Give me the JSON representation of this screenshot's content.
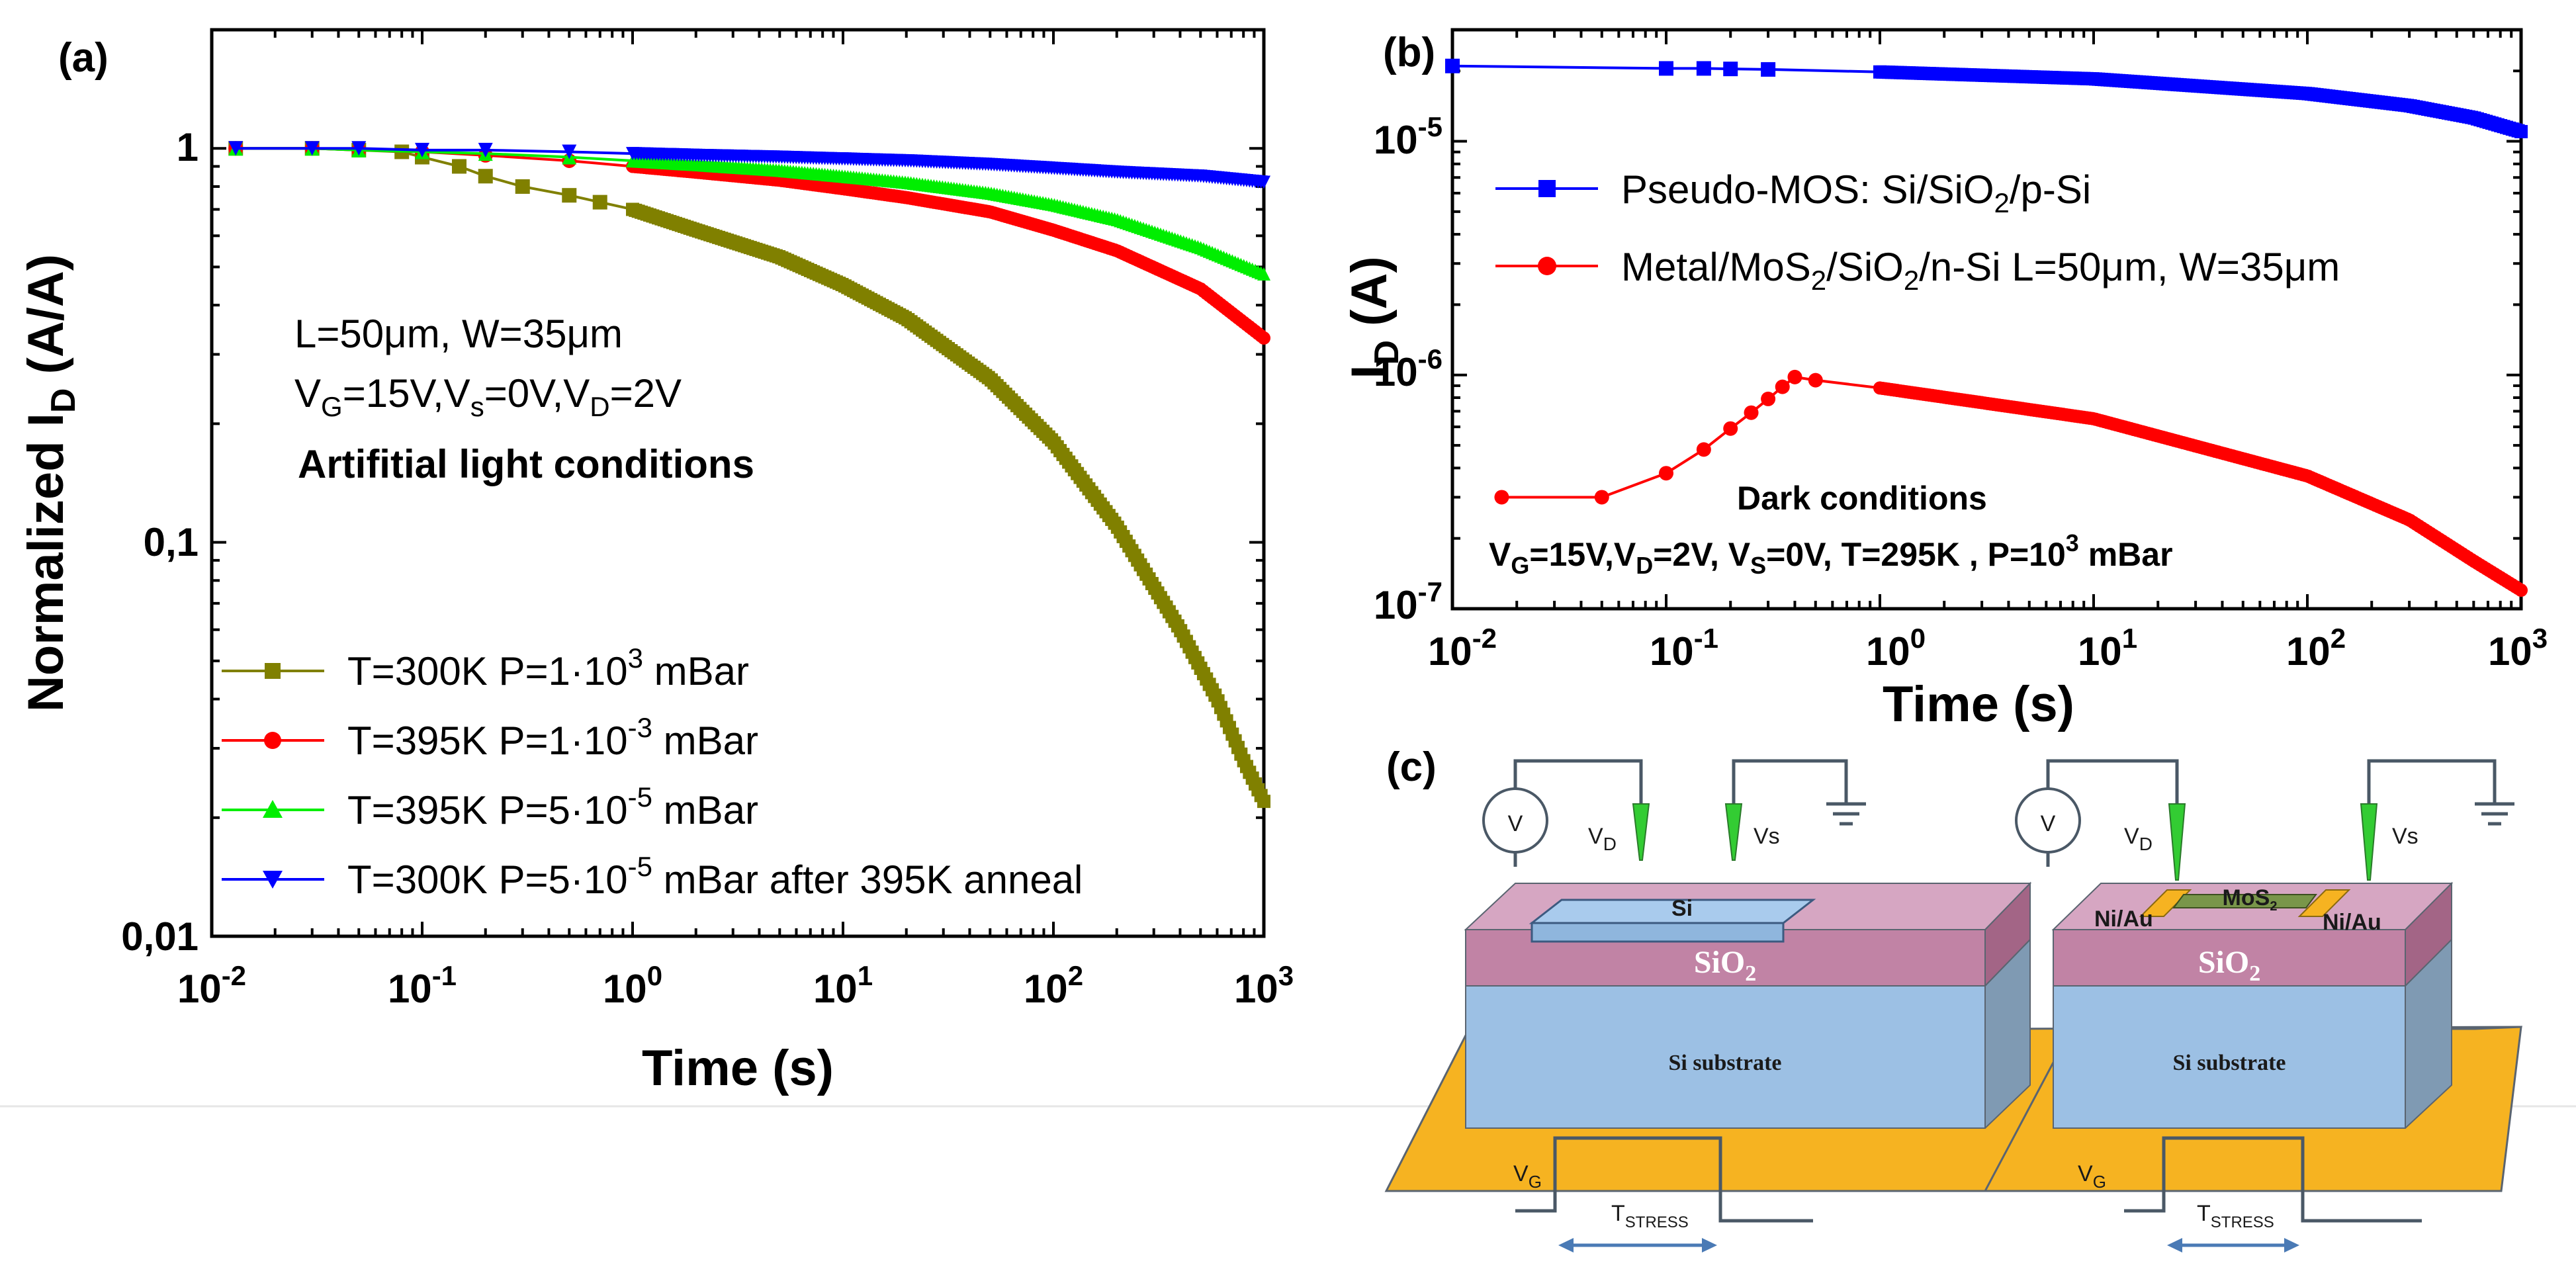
{
  "chart_data": [
    {
      "panel": "(a)",
      "type": "line",
      "xscale": "log",
      "yscale": "log",
      "xlim": [
        0.01,
        1000
      ],
      "ylim": [
        0.01,
        2
      ],
      "xlabel": "Time (s)",
      "ylabel": "Normalized I_D (A/A)",
      "xticks": [
        {
          "base": "10",
          "exp": "-2"
        },
        {
          "base": "10",
          "exp": "-1"
        },
        {
          "base": "10",
          "exp": "0"
        },
        {
          "base": "10",
          "exp": "1"
        },
        {
          "base": "10",
          "exp": "2"
        },
        {
          "base": "10",
          "exp": "3"
        }
      ],
      "yticks": [
        "1",
        "0,1",
        "0,01"
      ],
      "annotations": {
        "line1_prefix": "L=50",
        "line1_mu": "μ",
        "line1_mid": "m, W=35",
        "line1_mu2": "μ",
        "line1_suffix": "m",
        "line2_vg": "V",
        "line2_vg_sub": "G",
        "line2_a": "=15V,V",
        "line2_vs_sub": "s",
        "line2_b": "=0V,V",
        "line2_vd_sub": "D",
        "line2_c": "=2V",
        "line3": "Artifitial light conditions"
      },
      "legend_position": "bottom-left",
      "series": [
        {
          "name": "T=300K P=1·10^3 mBar",
          "legend_pre": "T=300K P=1·10",
          "legend_sup": "3",
          "legend_post": " mBar",
          "color": "#808000",
          "marker": "square",
          "x": [
            0.013,
            0.03,
            0.05,
            0.08,
            0.1,
            0.15,
            0.2,
            0.3,
            0.5,
            0.7,
            1,
            2,
            5,
            10,
            20,
            50,
            100,
            200,
            400,
            600,
            800,
            1000
          ],
          "y": [
            1,
            1,
            0.99,
            0.98,
            0.95,
            0.9,
            0.85,
            0.8,
            0.76,
            0.73,
            0.7,
            0.62,
            0.53,
            0.45,
            0.37,
            0.26,
            0.18,
            0.11,
            0.06,
            0.04,
            0.028,
            0.022
          ]
        },
        {
          "name": "T=395K P=1·10^-3 mBar",
          "legend_pre": "T=395K P=1·10",
          "legend_sup": "-3",
          "legend_post": " mBar",
          "color": "#ff0000",
          "marker": "circle",
          "x": [
            0.013,
            0.03,
            0.05,
            0.1,
            0.2,
            0.5,
            1,
            2,
            5,
            10,
            20,
            50,
            100,
            200,
            500,
            1000
          ],
          "y": [
            1,
            1,
            0.99,
            0.98,
            0.96,
            0.93,
            0.9,
            0.87,
            0.83,
            0.79,
            0.75,
            0.69,
            0.62,
            0.55,
            0.44,
            0.33
          ]
        },
        {
          "name": "T=395K P=5·10^-5 mBar",
          "legend_pre": "T=395K P=5·10",
          "legend_sup": "-5",
          "legend_post": " mBar",
          "color": "#00ee00",
          "marker": "triangle-up",
          "x": [
            0.013,
            0.03,
            0.05,
            0.1,
            0.2,
            0.5,
            1,
            2,
            5,
            10,
            20,
            50,
            100,
            200,
            500,
            1000
          ],
          "y": [
            1,
            1,
            0.99,
            0.98,
            0.97,
            0.95,
            0.93,
            0.91,
            0.88,
            0.85,
            0.82,
            0.77,
            0.72,
            0.66,
            0.56,
            0.48
          ]
        },
        {
          "name": "T=300K P=5·10^-5 mBar after 395K anneal",
          "legend_pre": "T=300K P=5·10",
          "legend_sup": "-5",
          "legend_post": " mBar after 395K anneal",
          "color": "#0000ff",
          "marker": "triangle-down",
          "x": [
            0.013,
            0.03,
            0.05,
            0.1,
            0.2,
            0.5,
            1,
            2,
            5,
            10,
            20,
            50,
            100,
            200,
            500,
            1000
          ],
          "y": [
            1,
            1,
            1,
            0.99,
            0.99,
            0.98,
            0.97,
            0.96,
            0.95,
            0.94,
            0.93,
            0.91,
            0.89,
            0.87,
            0.85,
            0.82
          ]
        }
      ]
    },
    {
      "panel": "(b)",
      "type": "line",
      "xscale": "log",
      "yscale": "log",
      "xlim": [
        0.01,
        1000
      ],
      "ylim": [
        1e-07,
        3e-05
      ],
      "xlabel": "Time (s)",
      "ylabel": "I_D (A)",
      "xticks": [
        {
          "base": "10",
          "exp": "-2"
        },
        {
          "base": "10",
          "exp": "-1"
        },
        {
          "base": "10",
          "exp": "0"
        },
        {
          "base": "10",
          "exp": "1"
        },
        {
          "base": "10",
          "exp": "2"
        },
        {
          "base": "10",
          "exp": "3"
        }
      ],
      "yticks": [
        {
          "base": "10",
          "exp": "-5"
        },
        {
          "base": "10",
          "exp": "-6"
        },
        {
          "base": "10",
          "exp": "-7"
        }
      ],
      "annotations": {
        "line1": "Dark conditions",
        "l2_v1": "V",
        "l2_s1": "G",
        "l2_a": "=15V,V",
        "l2_s2": "D",
        "l2_b": "=2V, V",
        "l2_s3": "S",
        "l2_c": "=0V, T=295K , P=10",
        "l2_sup": "3",
        "l2_d": " mBar"
      },
      "legend_position": "top-left",
      "series": [
        {
          "name": "Pseudo-MOS: Si/SiO2/p-Si",
          "legend_a": "Pseudo-MOS: Si/SiO",
          "legend_sub": "2",
          "legend_b": "/p-Si",
          "legend_c": "",
          "legend_mu": "",
          "legend_d": "",
          "color": "#0000ff",
          "marker": "square",
          "x": [
            0.01,
            0.1,
            0.15,
            0.2,
            0.3,
            1,
            10,
            100,
            300,
            600,
            1000
          ],
          "y": [
            2.1e-05,
            2.05e-05,
            2.05e-05,
            2.04e-05,
            2.03e-05,
            1.98e-05,
            1.85e-05,
            1.6e-05,
            1.42e-05,
            1.26e-05,
            1.1e-05
          ]
        },
        {
          "name": "Metal/MoS2/SiO2/n-Si L=50μm, W=35μm",
          "legend_a": "Metal/MoS",
          "legend_sub": "2",
          "legend_b": "/SiO",
          "legend_sub2": "2",
          "legend_c": "/n-Si L=50",
          "legend_mu": "μ",
          "legend_d": "m, W=35",
          "legend_mu2": "μ",
          "legend_e": "m",
          "color": "#ff0000",
          "marker": "circle",
          "x": [
            0.017,
            0.05,
            0.1,
            0.15,
            0.2,
            0.25,
            0.3,
            0.35,
            0.4,
            0.5,
            1,
            10,
            100,
            300,
            600,
            1000
          ],
          "y": [
            3e-07,
            3e-07,
            3.8e-07,
            4.8e-07,
            5.9e-07,
            6.9e-07,
            7.9e-07,
            8.9e-07,
            9.8e-07,
            9.5e-07,
            8.8e-07,
            6.5e-07,
            3.7e-07,
            2.4e-07,
            1.6e-07,
            1.2e-07
          ]
        }
      ]
    }
  ],
  "panel_c": {
    "label": "(c)",
    "left": {
      "voltmeter": "V",
      "vd": "V",
      "vd_sub": "D",
      "vs": "Vs",
      "top_layer": "Si",
      "oxide": "SiO",
      "oxide_sub": "2",
      "substrate": "Si substrate",
      "vg": "V",
      "vg_sub": "G",
      "tstress": "T",
      "tstress_sub": "STRESS"
    },
    "right": {
      "voltmeter": "V",
      "vd": "V",
      "vd_sub": "D",
      "vs": "Vs",
      "channel": "MoS",
      "channel_sub": "2",
      "contact_left": "Ni/Au",
      "contact_right": "Ni/Au",
      "oxide": "SiO",
      "oxide_sub": "2",
      "substrate": "Si substrate",
      "vg": "V",
      "vg_sub": "G",
      "tstress": "T",
      "tstress_sub": "STRESS"
    },
    "colors": {
      "oxide": "#c183a5",
      "substrate": "#9cc0e4",
      "gate": "#f6b321",
      "si_top": "#a9cbed",
      "channel": "#79964a",
      "probe": "#33cc33"
    }
  }
}
